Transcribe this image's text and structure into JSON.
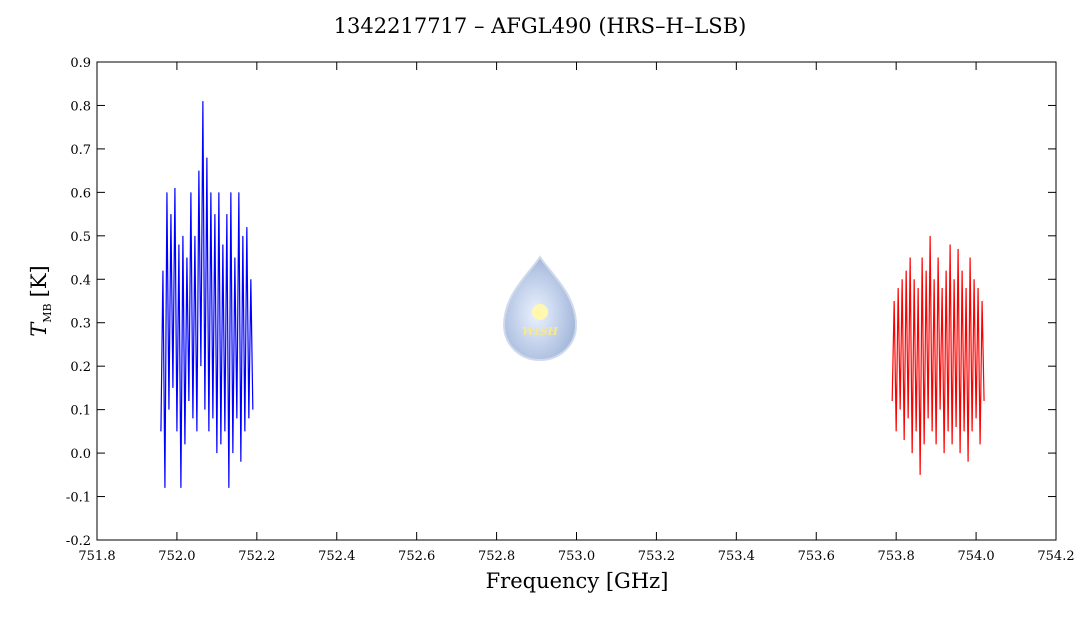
{
  "chart_data": {
    "type": "line",
    "title": "1342217717 – AFGL490 (HRS–H–LSB)",
    "x_label": "Frequency [GHz]",
    "y_label": "T",
    "y_label_sub": "MB",
    "y_label_unit": "[K]",
    "watermark": "WISH",
    "xlim": [
      751.8,
      754.2
    ],
    "ylim": [
      -0.2,
      0.9
    ],
    "xticks": [
      751.8,
      {
        "value": 752,
        "label": "752.0"
      },
      752.2,
      752.4,
      752.6,
      752.8,
      {
        "value": 753,
        "label": "753.0"
      },
      753.2,
      753.4,
      753.6,
      753.8,
      {
        "value": 754,
        "label": "754.0"
      },
      754.2
    ],
    "yticks": [
      -0.2,
      -0.1,
      {
        "value": 0,
        "label": "0.0"
      },
      0.1,
      0.2,
      0.3,
      0.4,
      0.5,
      0.6,
      0.7,
      0.8,
      0.9
    ],
    "series": [
      {
        "color": "#0000ff",
        "x": [
          751.96,
          751.965,
          751.97,
          751.975,
          751.98,
          751.985,
          751.99,
          751.995,
          752,
          752.005,
          752.01,
          752.015,
          752.02,
          752.025,
          752.03,
          752.035,
          752.04,
          752.045,
          752.05,
          752.055,
          752.06,
          752.065,
          752.07,
          752.075,
          752.08,
          752.085,
          752.09,
          752.095,
          752.1,
          752.105,
          752.11,
          752.115,
          752.12,
          752.125,
          752.13,
          752.135,
          752.14,
          752.145,
          752.15,
          752.155,
          752.16,
          752.165,
          752.17,
          752.175,
          752.18,
          752.185,
          752.19
        ],
        "values": [
          0.05,
          0.42,
          -0.08,
          0.6,
          0.1,
          0.55,
          0.15,
          0.61,
          0.05,
          0.48,
          -0.08,
          0.5,
          0.02,
          0.45,
          0.12,
          0.6,
          0.08,
          0.5,
          0.05,
          0.65,
          0.2,
          0.81,
          0.1,
          0.68,
          0.05,
          0.6,
          0.08,
          0.55,
          0.0,
          0.6,
          0.02,
          0.48,
          0.05,
          0.55,
          -0.08,
          0.6,
          0.0,
          0.45,
          0.08,
          0.6,
          -0.02,
          0.5,
          0.05,
          0.52,
          0.08,
          0.4,
          0.1
        ]
      },
      {
        "color": "#ff0000",
        "x": [
          753.79,
          753.795,
          753.8,
          753.805,
          753.81,
          753.815,
          753.82,
          753.825,
          753.83,
          753.835,
          753.84,
          753.845,
          753.85,
          753.855,
          753.86,
          753.865,
          753.87,
          753.875,
          753.88,
          753.885,
          753.89,
          753.895,
          753.9,
          753.905,
          753.91,
          753.915,
          753.92,
          753.925,
          753.93,
          753.935,
          753.94,
          753.945,
          753.95,
          753.955,
          753.96,
          753.965,
          753.97,
          753.975,
          753.98,
          753.985,
          753.99,
          753.995,
          754,
          754.005,
          754.01,
          754.015,
          754.02
        ],
        "values": [
          0.12,
          0.35,
          0.05,
          0.38,
          0.1,
          0.4,
          0.03,
          0.42,
          0.08,
          0.45,
          0.0,
          0.4,
          0.05,
          0.38,
          -0.05,
          0.45,
          0.02,
          0.42,
          0.08,
          0.5,
          0.05,
          0.4,
          0.02,
          0.45,
          0.1,
          0.38,
          0.0,
          0.42,
          0.05,
          0.48,
          0.02,
          0.4,
          0.06,
          0.47,
          0.0,
          0.42,
          0.05,
          0.38,
          -0.02,
          0.45,
          0.05,
          0.4,
          0.08,
          0.38,
          0.02,
          0.35,
          0.12
        ]
      }
    ]
  }
}
